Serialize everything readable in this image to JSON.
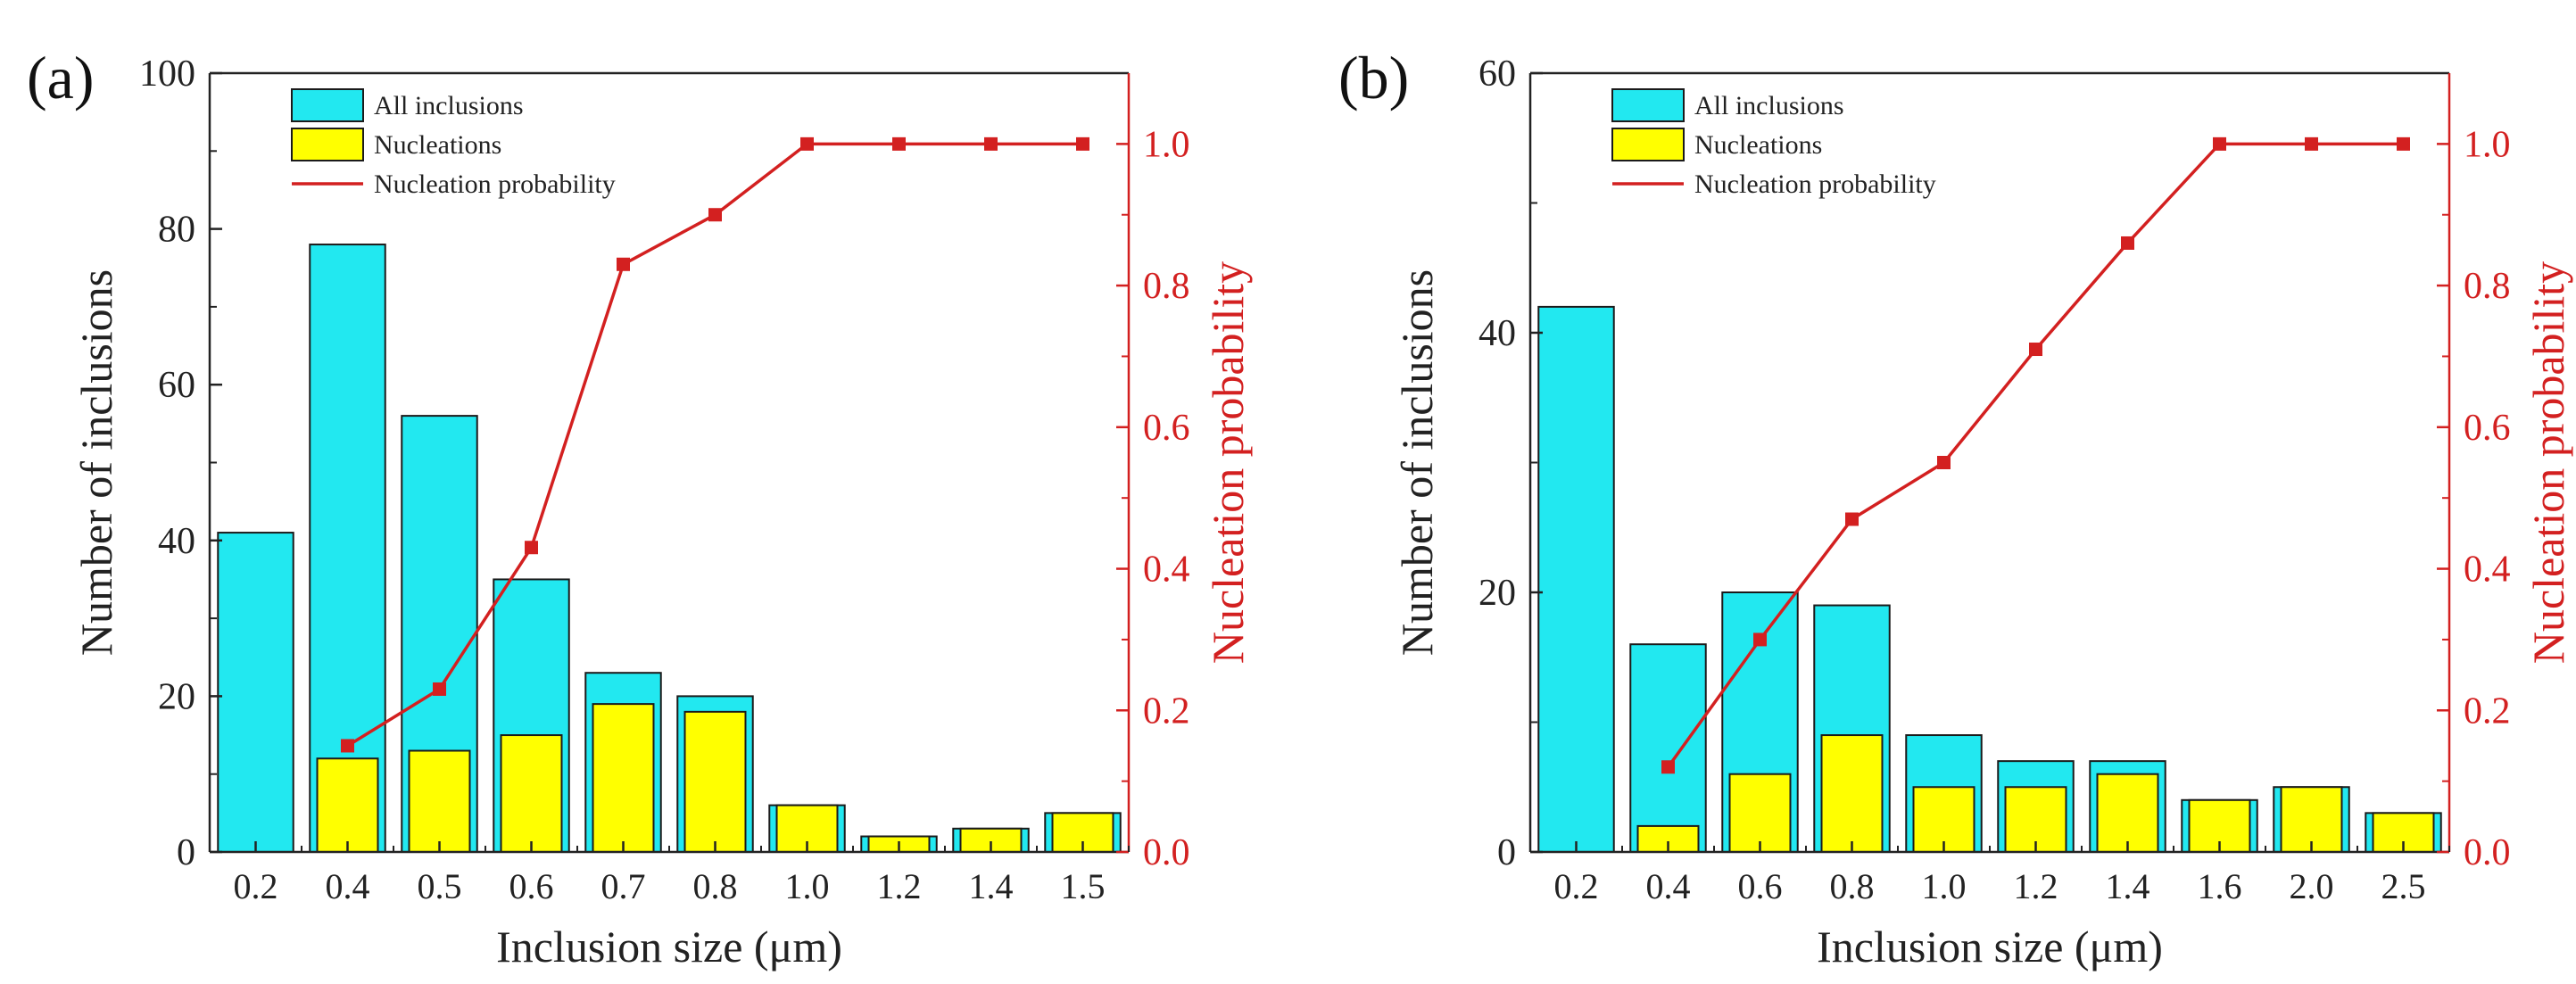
{
  "chart_data": [
    {
      "panel_label": "(a)",
      "type": "bar",
      "categories": [
        "0.2",
        "0.4",
        "0.5",
        "0.6",
        "0.7",
        "0.8",
        "1.0",
        "1.2",
        "1.4",
        "1.5"
      ],
      "series": [
        {
          "name": "All inclusions",
          "kind": "bar",
          "color": "#22e8f0",
          "values": [
            41,
            78,
            56,
            35,
            23,
            20,
            6,
            2,
            3,
            5
          ]
        },
        {
          "name": "Nucleations",
          "kind": "bar",
          "color": "#ffff00",
          "values": [
            0,
            12,
            13,
            15,
            19,
            18,
            6,
            2,
            3,
            5
          ]
        },
        {
          "name": "Nucleation probability",
          "kind": "line",
          "axis": "right",
          "color": "#d32020",
          "values": [
            null,
            0.15,
            0.23,
            0.43,
            0.83,
            0.9,
            1.0,
            1.0,
            1.0,
            1.0
          ]
        }
      ],
      "xlabel": "Inclusion size (μm)",
      "ylabel": "Number of inclusions",
      "ylabel_right": "Nucleation probability",
      "ylim": [
        0,
        100
      ],
      "yticks": [
        "0",
        "20",
        "40",
        "60",
        "80",
        "100"
      ],
      "ylim_right": [
        0,
        1.1
      ],
      "yticks_right": [
        "0.0",
        "0.2",
        "0.4",
        "0.6",
        "0.8",
        "1.0"
      ],
      "legend_position": "top-left",
      "grid": false
    },
    {
      "panel_label": "(b)",
      "type": "bar",
      "categories": [
        "0.2",
        "0.4",
        "0.6",
        "0.8",
        "1.0",
        "1.2",
        "1.4",
        "1.6",
        "2.0",
        "2.5"
      ],
      "series": [
        {
          "name": "All inclusions",
          "kind": "bar",
          "color": "#22e8f0",
          "values": [
            42,
            16,
            20,
            19,
            9,
            7,
            7,
            4,
            5,
            3
          ]
        },
        {
          "name": "Nucleations",
          "kind": "bar",
          "color": "#ffff00",
          "values": [
            0,
            2,
            6,
            9,
            5,
            5,
            6,
            4,
            5,
            3
          ]
        },
        {
          "name": "Nucleation probability",
          "kind": "line",
          "axis": "right",
          "color": "#d32020",
          "values": [
            null,
            0.12,
            0.3,
            0.47,
            0.55,
            0.71,
            0.86,
            1.0,
            1.0,
            1.0
          ]
        }
      ],
      "xlabel": "Inclusion size (μm)",
      "ylabel": "Number of inclusions",
      "ylabel_right": "Nucleation probability",
      "ylim": [
        0,
        60
      ],
      "yticks": [
        "0",
        "20",
        "40",
        "60"
      ],
      "ylim_right": [
        0,
        1.1
      ],
      "yticks_right": [
        "0.0",
        "0.2",
        "0.4",
        "0.6",
        "0.8",
        "1.0"
      ],
      "legend_position": "top-left",
      "grid": false
    }
  ]
}
